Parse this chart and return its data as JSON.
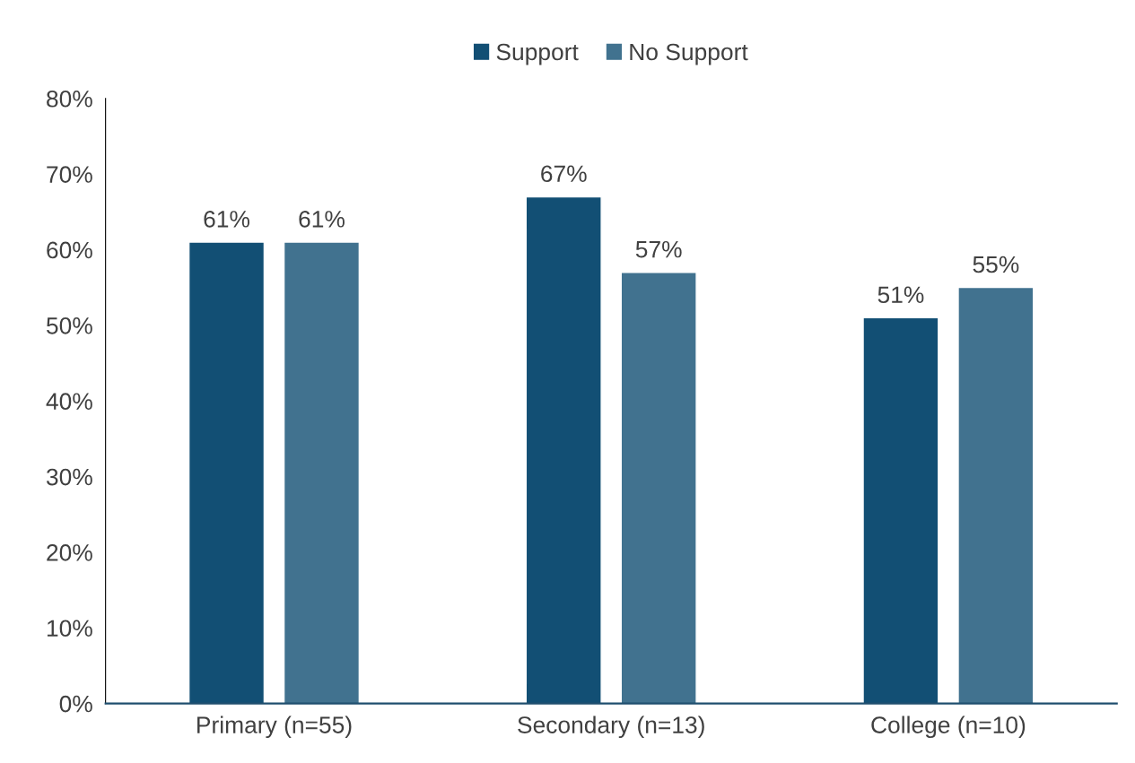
{
  "chart_data": {
    "type": "bar",
    "categories": [
      "Primary (n=55)",
      "Secondary (n=13)",
      "College (n=10)"
    ],
    "series": [
      {
        "name": "Support",
        "color": "#124f74",
        "values": [
          61,
          67,
          51
        ],
        "value_labels": [
          "61%",
          "67%",
          "51%"
        ]
      },
      {
        "name": "No Support",
        "color": "#41728f",
        "values": [
          61,
          57,
          55
        ],
        "value_labels": [
          "61%",
          "57%",
          "55%"
        ]
      }
    ],
    "ylim": [
      0,
      80
    ],
    "yticks": [
      {
        "value": 0,
        "label": "0%"
      },
      {
        "value": 10,
        "label": "10%"
      },
      {
        "value": 20,
        "label": "20%"
      },
      {
        "value": 30,
        "label": "30%"
      },
      {
        "value": 40,
        "label": "40%"
      },
      {
        "value": 50,
        "label": "50%"
      },
      {
        "value": 60,
        "label": "60%"
      },
      {
        "value": 70,
        "label": "70%"
      },
      {
        "value": 80,
        "label": "80%"
      }
    ],
    "legend": "top",
    "grid": false
  }
}
